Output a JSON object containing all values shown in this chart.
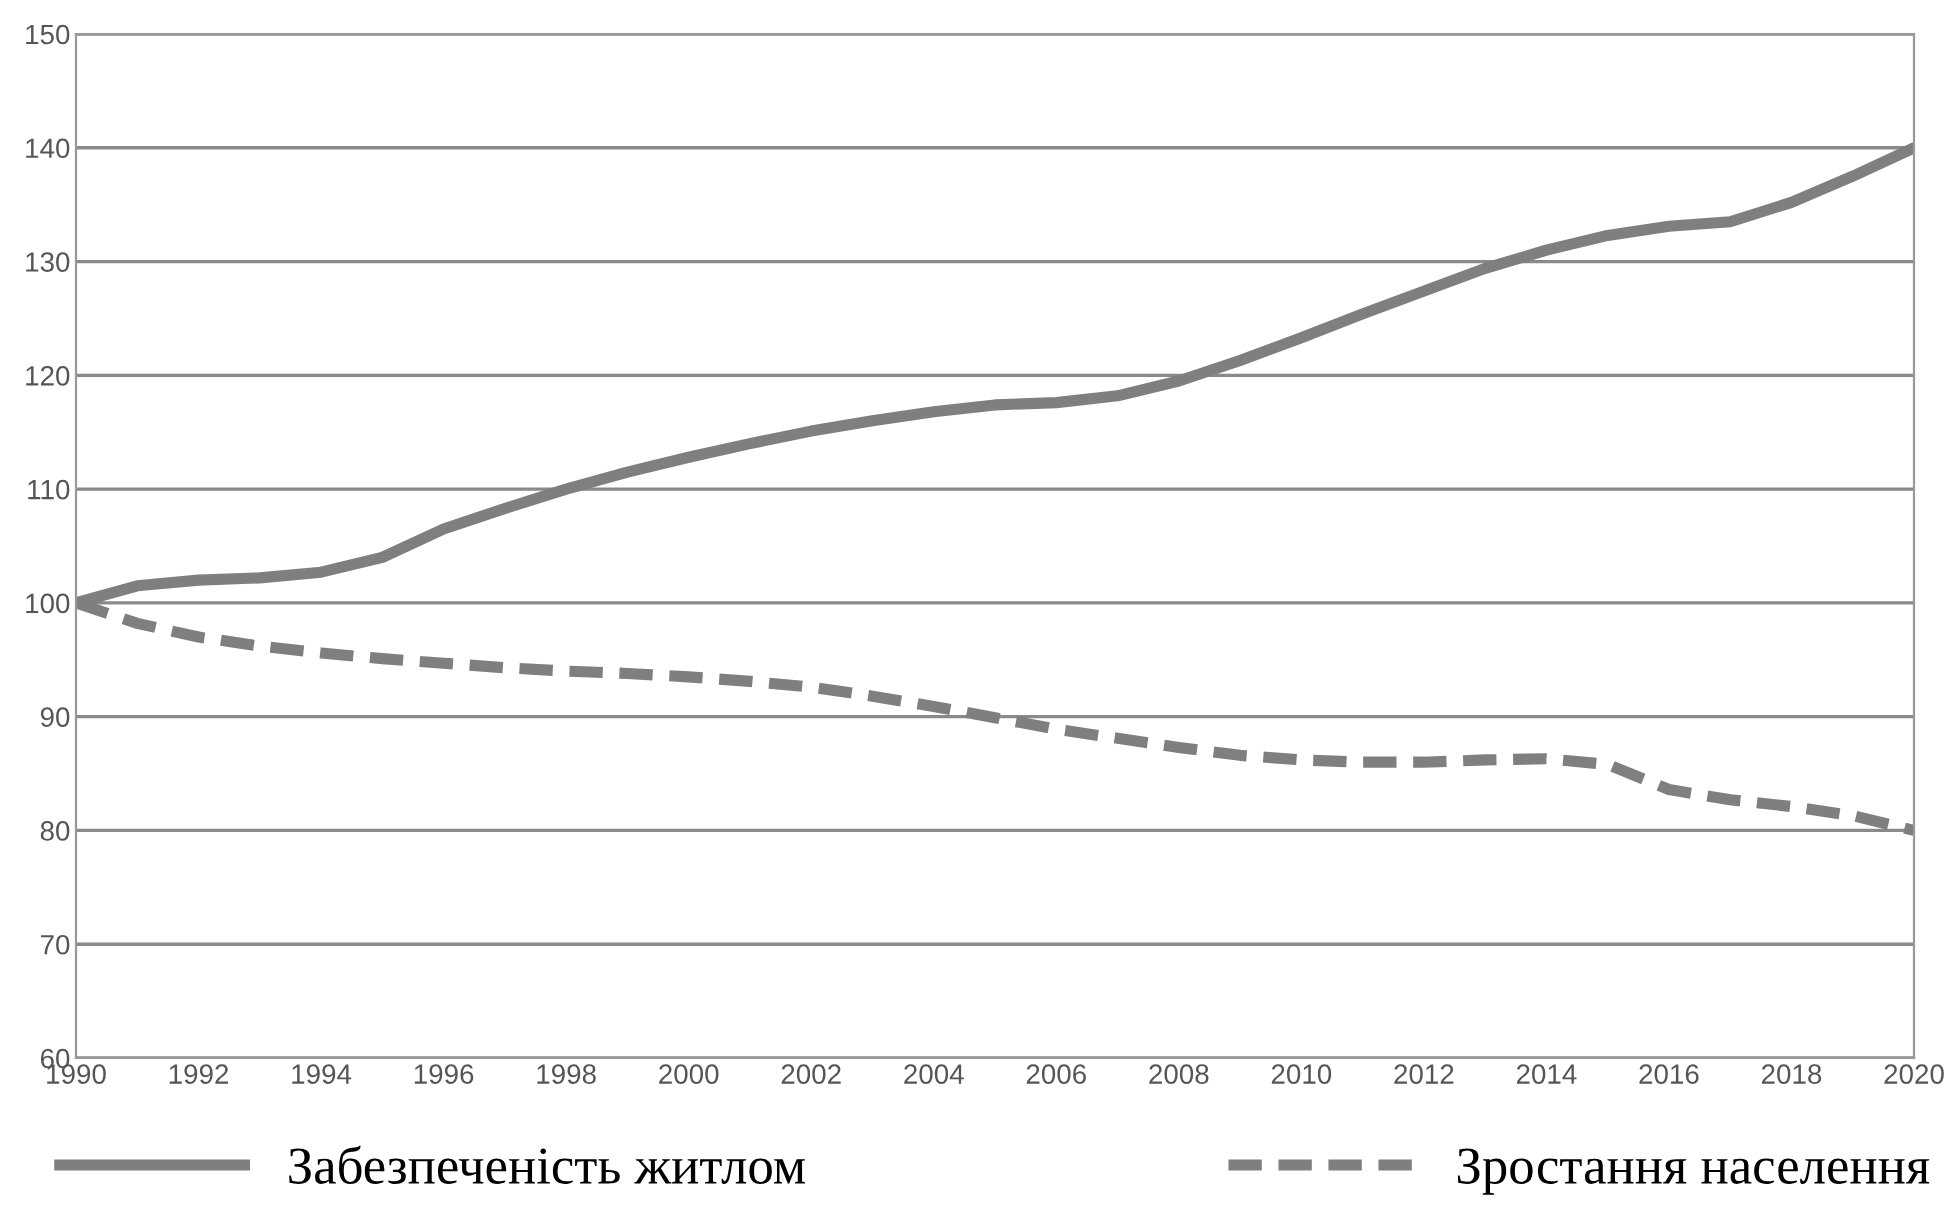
{
  "chart_data": {
    "type": "line",
    "x": [
      1990,
      1991,
      1992,
      1993,
      1994,
      1995,
      1996,
      1997,
      1998,
      1999,
      2000,
      2001,
      2002,
      2003,
      2004,
      2005,
      2006,
      2007,
      2008,
      2009,
      2010,
      2011,
      2012,
      2013,
      2014,
      2015,
      2016,
      2017,
      2018,
      2019,
      2020
    ],
    "series": [
      {
        "name": "Забезпеченість житлом",
        "color": "#7f7f7f",
        "line_style": "solid",
        "values": [
          100,
          101.5,
          102,
          102.2,
          102.7,
          104,
          106.5,
          108.3,
          110,
          111.5,
          112.8,
          114,
          115.1,
          116,
          116.8,
          117.4,
          117.6,
          118.2,
          119.5,
          121.3,
          123.3,
          125.4,
          127.4,
          129.4,
          131,
          132.3,
          133.1,
          133.5,
          135.2,
          137.5,
          140
        ]
      },
      {
        "name": "Зростання населення",
        "color": "#7f7f7f",
        "line_style": "dashed",
        "values": [
          100,
          98.2,
          97,
          96.2,
          95.6,
          95.1,
          94.7,
          94.3,
          94,
          93.8,
          93.5,
          93.1,
          92.6,
          91.8,
          90.9,
          89.9,
          88.9,
          88.1,
          87.3,
          86.6,
          86.2,
          86,
          86,
          86.2,
          86.3,
          85.8,
          83.6,
          82.7,
          82.1,
          81.3,
          80
        ]
      }
    ],
    "xlim": [
      1990,
      2020
    ],
    "xticks": [
      1990,
      1992,
      1994,
      1996,
      1998,
      2000,
      2002,
      2004,
      2006,
      2008,
      2010,
      2012,
      2014,
      2016,
      2018,
      2020
    ],
    "ylim": [
      60,
      150
    ],
    "yticks": [
      60,
      70,
      80,
      90,
      100,
      110,
      120,
      130,
      140,
      150
    ],
    "grid": "y",
    "legend": "bottom",
    "marker": "none"
  }
}
